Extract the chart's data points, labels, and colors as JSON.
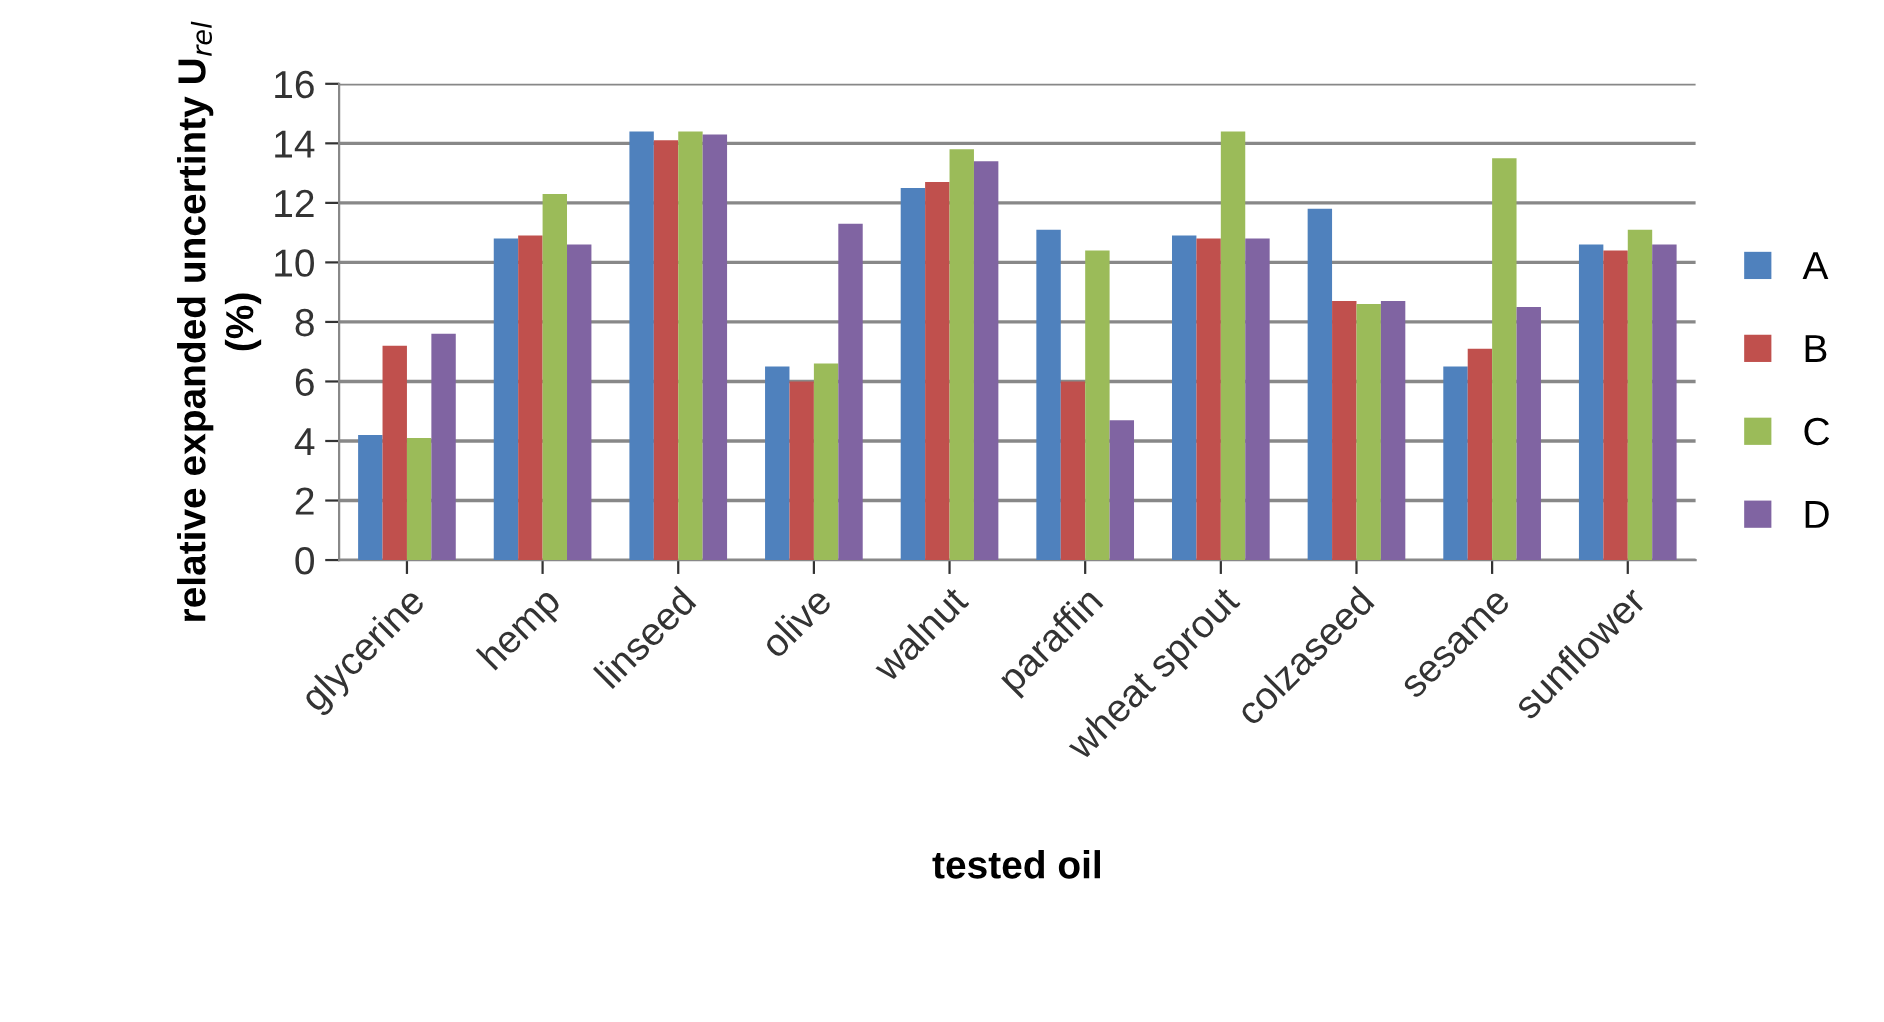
{
  "chart_data": {
    "type": "bar",
    "xlabel": "tested oil",
    "ylabel": "relative expanded uncertinty U$_{rel}$\n(%)",
    "categories": [
      "glycerine",
      "hemp",
      "linseed",
      "olive",
      "walnut",
      "paraffin",
      "wheat sprout",
      "colzaseed",
      "sesame",
      "sunflower"
    ],
    "series": [
      {
        "name": "A",
        "color": "#4f81bd",
        "values": [
          4.2,
          10.8,
          14.4,
          6.5,
          12.5,
          11.1,
          10.9,
          11.8,
          6.5,
          10.6
        ]
      },
      {
        "name": "B",
        "color": "#c0504d",
        "values": [
          7.2,
          10.9,
          14.1,
          6.0,
          12.7,
          6.0,
          10.8,
          8.7,
          7.1,
          10.4
        ]
      },
      {
        "name": "C",
        "color": "#9bbb59",
        "values": [
          4.1,
          12.3,
          14.4,
          6.6,
          13.8,
          10.4,
          14.4,
          8.6,
          13.5,
          11.1
        ]
      },
      {
        "name": "D",
        "color": "#8064a2",
        "values": [
          7.6,
          10.6,
          14.3,
          11.3,
          13.4,
          4.7,
          10.8,
          8.7,
          8.5,
          10.6
        ]
      }
    ],
    "ylim": [
      0,
      16
    ],
    "yticks": [
      0,
      2,
      4,
      6,
      8,
      10,
      12,
      14,
      16
    ],
    "grid": "y",
    "legend": "right"
  }
}
